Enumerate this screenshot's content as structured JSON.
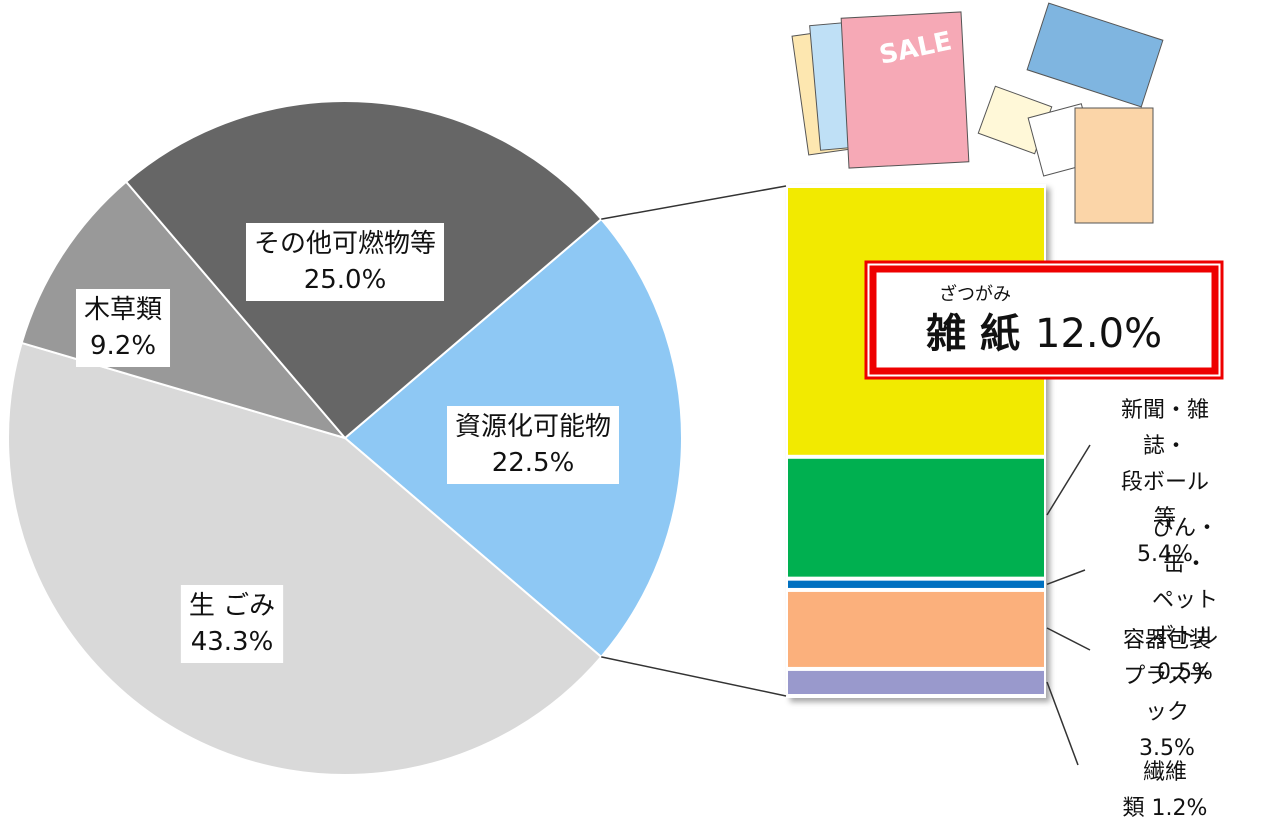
{
  "chart_data": [
    {
      "type": "pie",
      "categories": [
        "資源化可能物",
        "生 ごみ",
        "木草類",
        "その他可燃物等"
      ],
      "values": [
        22.5,
        43.3,
        9.2,
        25.0
      ],
      "value_labels": [
        "22.5%",
        "43.3%",
        "9.2%",
        "25.0%"
      ],
      "colors": [
        "#8ec8f4",
        "#d9d9d9",
        "#999999",
        "#666666"
      ]
    },
    {
      "type": "stacked-bar",
      "series": [
        {
          "name": "雑 紙",
          "reading": "ざつがみ",
          "color": "#f2ea00",
          "values": [
            12.0
          ],
          "value_labels": [
            "12.0%"
          ]
        },
        {
          "name": "新聞・雑誌・\n段ボール等",
          "color": "#00b050",
          "values": [
            5.4
          ],
          "value_labels": [
            "5.4%"
          ]
        },
        {
          "name": "びん・缶・\nペットボトル",
          "color": "#0070c0",
          "values": [
            0.5
          ],
          "value_labels": [
            "0.5%"
          ]
        },
        {
          "name": "容器包装\nプラスチック",
          "color": "#fbb07c",
          "values": [
            3.5
          ],
          "value_labels": [
            "3.5%"
          ]
        },
        {
          "name": "繊維類",
          "color": "#9999cc",
          "values": [
            1.2
          ],
          "value_labels": [
            "1.2%"
          ]
        }
      ]
    }
  ]
}
